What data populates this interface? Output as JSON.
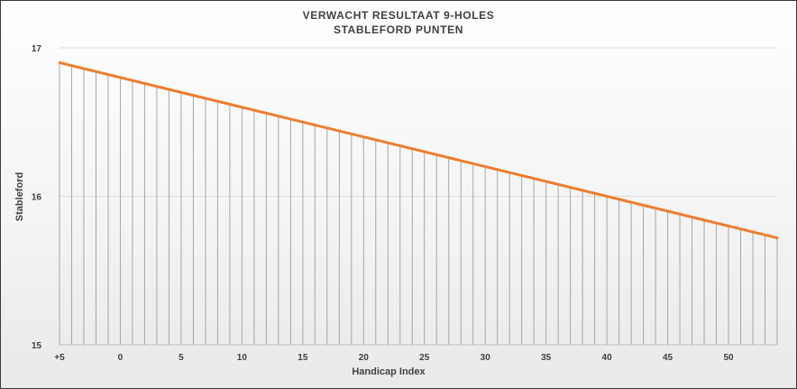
{
  "chart_data": {
    "type": "line",
    "title": "VERWACHT RESULTAAT 9-HOLES",
    "subtitle": "STABLEFORD PUNTEN",
    "xlabel": "Handicap Index",
    "ylabel": "Stableford",
    "x_tick_labels": [
      "+5",
      "0",
      "5",
      "10",
      "15",
      "20",
      "25",
      "30",
      "35",
      "40",
      "45",
      "50"
    ],
    "x_tick_values": [
      -5,
      0,
      5,
      10,
      15,
      20,
      25,
      30,
      35,
      40,
      45,
      50
    ],
    "y_tick_labels": [
      "15",
      "16",
      "17"
    ],
    "y_tick_values": [
      15,
      16,
      17
    ],
    "xlim": [
      -5,
      54
    ],
    "ylim": [
      15,
      17
    ],
    "x": [
      -5,
      54
    ],
    "y": [
      16.9,
      15.72
    ],
    "line_color": "#ED7D31",
    "dropline_color": "#A6A6A6",
    "grid": true
  }
}
